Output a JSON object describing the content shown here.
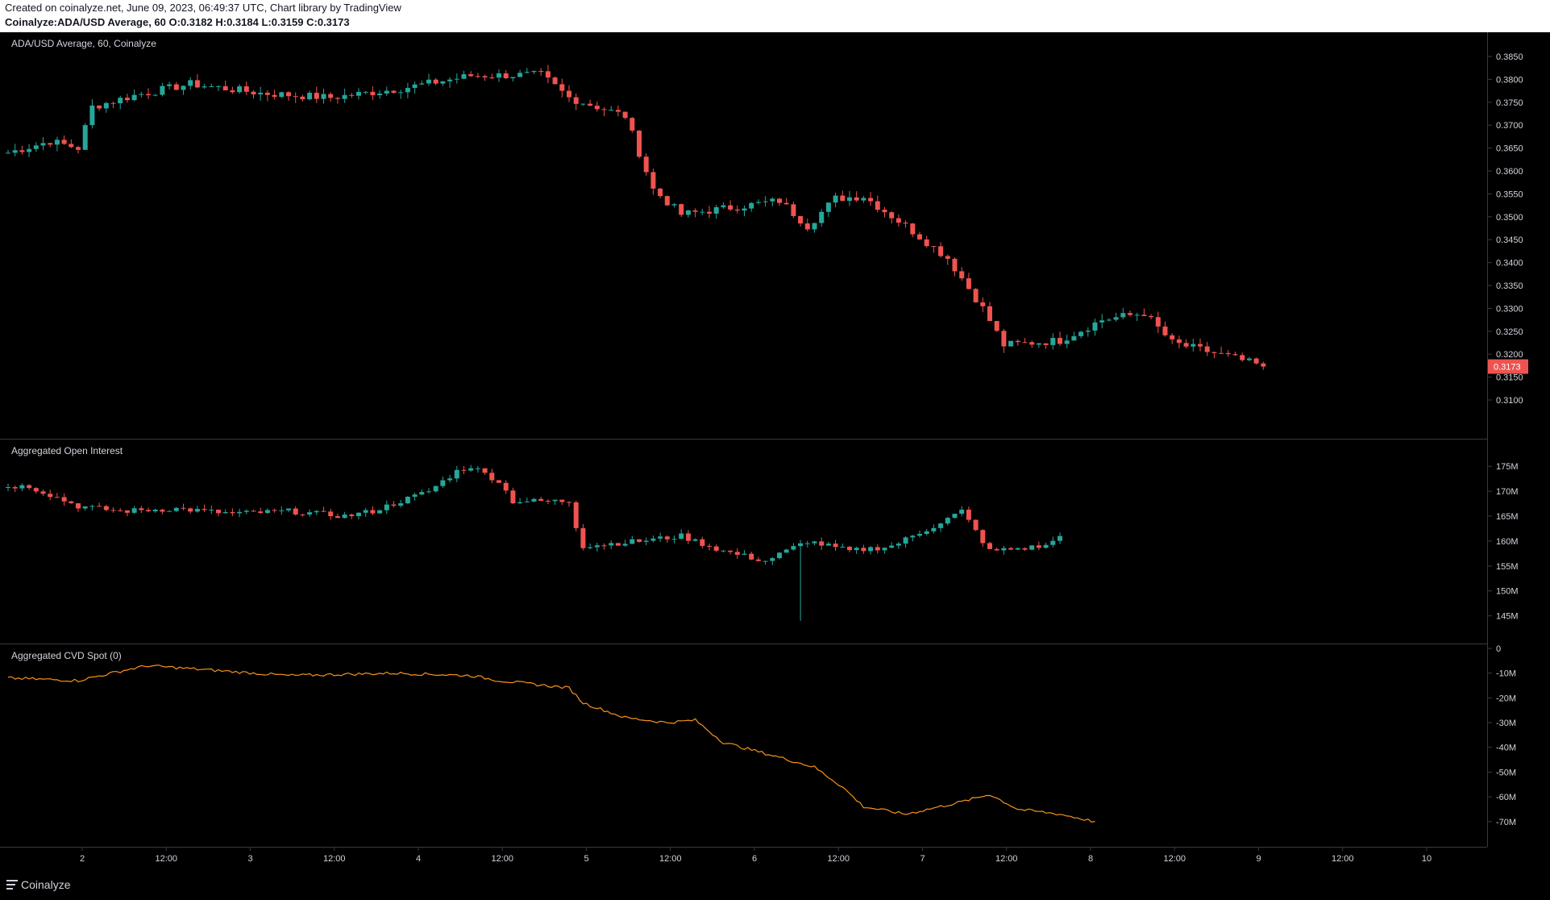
{
  "header": {
    "line1": "Created on coinalyze.net, June 09, 2023, 06:49:37 UTC, Chart library by TradingView",
    "symbol": "Coinalyze:ADA/USD Average, 60",
    "o_label": "O:",
    "o_value": "0.3182",
    "h_label": "H:",
    "h_value": "0.3184",
    "l_label": "L:",
    "l_value": "0.3159",
    "c_label": "C:",
    "c_value": "0.3173"
  },
  "footer": {
    "brand": "Coinalyze"
  },
  "colors": {
    "up": "#26a69a",
    "down": "#ef5350",
    "cvd": "#f7931a",
    "last_price_bg": "#ef5350",
    "grid": "#363a45",
    "text": "#d1d4dc"
  },
  "chart_data": [
    {
      "type": "candlestick",
      "title": "ADA/USD Average, 60, Coinalyze",
      "ylim": [
        0.31,
        0.385
      ],
      "y_ticks": [
        "0.3850",
        "0.3800",
        "0.3750",
        "0.3700",
        "0.3650",
        "0.3600",
        "0.3550",
        "0.3500",
        "0.3450",
        "0.3400",
        "0.3350",
        "0.3300",
        "0.3250",
        "0.3200",
        "0.3150",
        "0.3100"
      ],
      "last_price": "0.3173",
      "x_ticks": [
        "2",
        "12:00",
        "3",
        "12:00",
        "4",
        "12:00",
        "5",
        "12:00",
        "6",
        "12:00",
        "7",
        "12:00",
        "8",
        "12:00",
        "9",
        "12:00",
        "10"
      ],
      "keyframes": [
        {
          "t": 0,
          "price": 0.364
        },
        {
          "t": 6,
          "price": 0.3665
        },
        {
          "t": 10,
          "price": 0.365
        },
        {
          "t": 12,
          "price": 0.374
        },
        {
          "t": 18,
          "price": 0.3765
        },
        {
          "t": 26,
          "price": 0.379
        },
        {
          "t": 36,
          "price": 0.377
        },
        {
          "t": 46,
          "price": 0.376
        },
        {
          "t": 56,
          "price": 0.378
        },
        {
          "t": 66,
          "price": 0.3808
        },
        {
          "t": 76,
          "price": 0.381
        },
        {
          "t": 80,
          "price": 0.376
        },
        {
          "t": 88,
          "price": 0.372
        },
        {
          "t": 92,
          "price": 0.356
        },
        {
          "t": 96,
          "price": 0.3505
        },
        {
          "t": 110,
          "price": 0.3535
        },
        {
          "t": 114,
          "price": 0.348
        },
        {
          "t": 118,
          "price": 0.354
        },
        {
          "t": 122,
          "price": 0.3545
        },
        {
          "t": 128,
          "price": 0.348
        },
        {
          "t": 134,
          "price": 0.341
        },
        {
          "t": 139,
          "price": 0.33
        },
        {
          "t": 142,
          "price": 0.322
        },
        {
          "t": 150,
          "price": 0.323
        },
        {
          "t": 156,
          "price": 0.3275
        },
        {
          "t": 162,
          "price": 0.329
        },
        {
          "t": 166,
          "price": 0.3225
        },
        {
          "t": 174,
          "price": 0.3195
        },
        {
          "t": 179,
          "price": 0.3173
        }
      ]
    },
    {
      "type": "candlestick",
      "title": "Aggregated Open Interest",
      "ylim": [
        143,
        176
      ],
      "y_ticks": [
        "175M",
        "170M",
        "165M",
        "160M",
        "155M",
        "150M",
        "145M"
      ],
      "keyframes": [
        {
          "t": 0,
          "value": 171
        },
        {
          "t": 3,
          "value": 171
        },
        {
          "t": 10,
          "value": 167
        },
        {
          "t": 16,
          "value": 166
        },
        {
          "t": 24,
          "value": 166.5
        },
        {
          "t": 32,
          "value": 165.5
        },
        {
          "t": 40,
          "value": 166
        },
        {
          "t": 48,
          "value": 165
        },
        {
          "t": 52,
          "value": 166
        },
        {
          "t": 60,
          "value": 170
        },
        {
          "t": 64,
          "value": 174
        },
        {
          "t": 66,
          "value": 175
        },
        {
          "t": 70,
          "value": 172
        },
        {
          "t": 72,
          "value": 168
        },
        {
          "t": 80,
          "value": 168
        },
        {
          "t": 81,
          "value": 163
        },
        {
          "t": 82,
          "value": 159
        },
        {
          "t": 90,
          "value": 160
        },
        {
          "t": 96,
          "value": 161
        },
        {
          "t": 102,
          "value": 158
        },
        {
          "t": 108,
          "value": 156
        },
        {
          "t": 114,
          "value": 160
        },
        {
          "t": 120,
          "value": 158
        },
        {
          "t": 126,
          "value": 159
        },
        {
          "t": 132,
          "value": 163
        },
        {
          "t": 136,
          "value": 166
        },
        {
          "t": 140,
          "value": 158
        },
        {
          "t": 148,
          "value": 159
        },
        {
          "t": 150,
          "value": 161
        }
      ]
    },
    {
      "type": "line",
      "title": "Aggregated CVD Spot (0)",
      "ylim": [
        -73,
        0
      ],
      "y_ticks": [
        "0",
        "-10M",
        "-20M",
        "-30M",
        "-40M",
        "-50M",
        "-60M",
        "-70M"
      ],
      "keyframes": [
        {
          "t": 0,
          "value": -12
        },
        {
          "t": 10,
          "value": -13
        },
        {
          "t": 18,
          "value": -8
        },
        {
          "t": 20,
          "value": -7
        },
        {
          "t": 30,
          "value": -9
        },
        {
          "t": 40,
          "value": -11
        },
        {
          "t": 55,
          "value": -10
        },
        {
          "t": 66,
          "value": -11
        },
        {
          "t": 70,
          "value": -13
        },
        {
          "t": 80,
          "value": -16
        },
        {
          "t": 82,
          "value": -22
        },
        {
          "t": 88,
          "value": -28
        },
        {
          "t": 94,
          "value": -30
        },
        {
          "t": 98,
          "value": -29
        },
        {
          "t": 102,
          "value": -38
        },
        {
          "t": 110,
          "value": -44
        },
        {
          "t": 115,
          "value": -48
        },
        {
          "t": 119,
          "value": -56
        },
        {
          "t": 122,
          "value": -64
        },
        {
          "t": 128,
          "value": -67
        },
        {
          "t": 136,
          "value": -62
        },
        {
          "t": 140,
          "value": -59
        },
        {
          "t": 144,
          "value": -65
        },
        {
          "t": 150,
          "value": -67
        },
        {
          "t": 155,
          "value": -70
        }
      ]
    }
  ]
}
